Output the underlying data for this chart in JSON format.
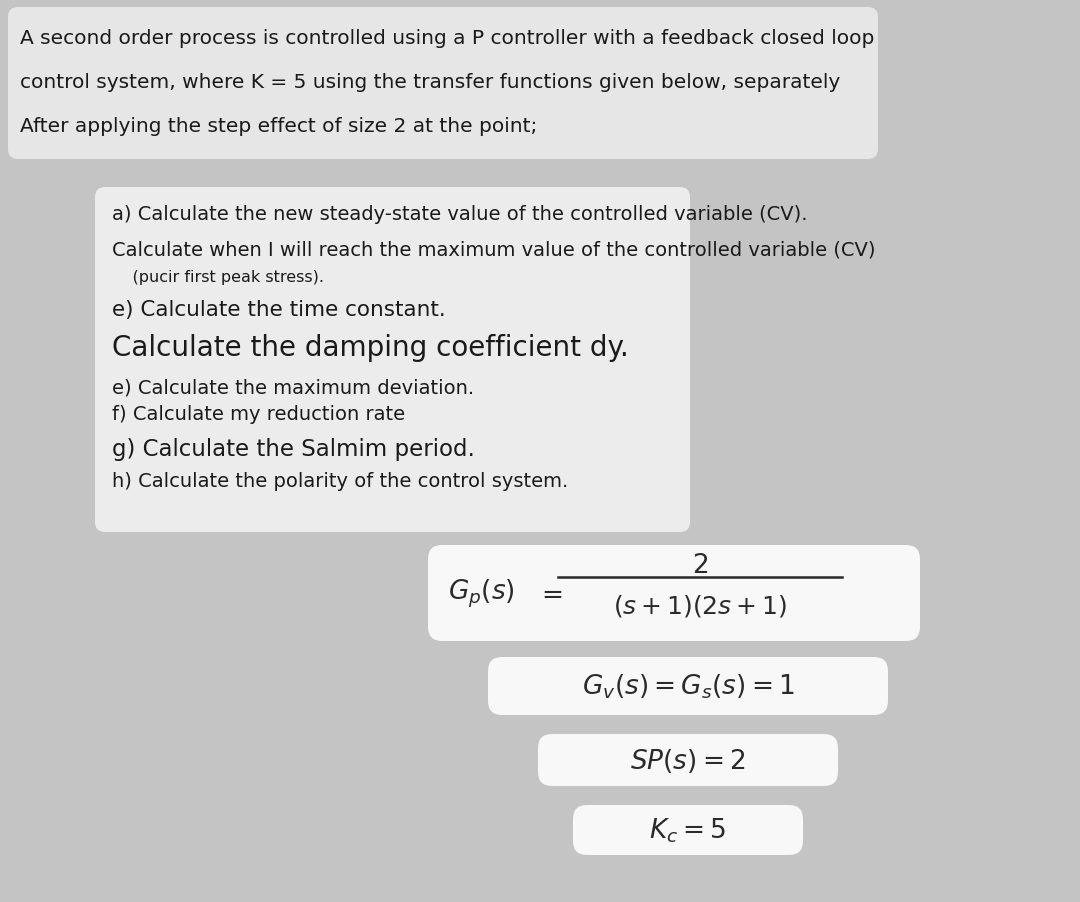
{
  "bg_color": "#c4c4c4",
  "top_box_color": "#e6e6e6",
  "inner_box_color": "#ececec",
  "formula_box_color": "#f8f8f8",
  "top_text_lines": [
    "A second order process is controlled using a P controller with a feedback closed loop",
    "control system, where K = 5 using the transfer functions given below, separately",
    "After applying the step effect of size 2 at the point;"
  ],
  "questions": [
    "a) Calculate the new steady-state value of the controlled variable (CV).",
    "Calculate when I will reach the maximum value of the controlled variable (CV)",
    "    (pucir first peak stress).",
    "e) Calculate the time constant.",
    "Calculate the damping coefficient dy.",
    "e) Calculate the maximum deviation.",
    "f) Calculate my reduction rate",
    "g) Calculate the Salmim period.",
    "h) Calculate the polarity of the control system."
  ],
  "q_fontsizes": [
    14,
    14,
    11.5,
    15.5,
    20,
    14,
    14,
    16.5,
    14
  ],
  "text_color": "#1a1a1a",
  "formula_color": "#2a2a2a"
}
